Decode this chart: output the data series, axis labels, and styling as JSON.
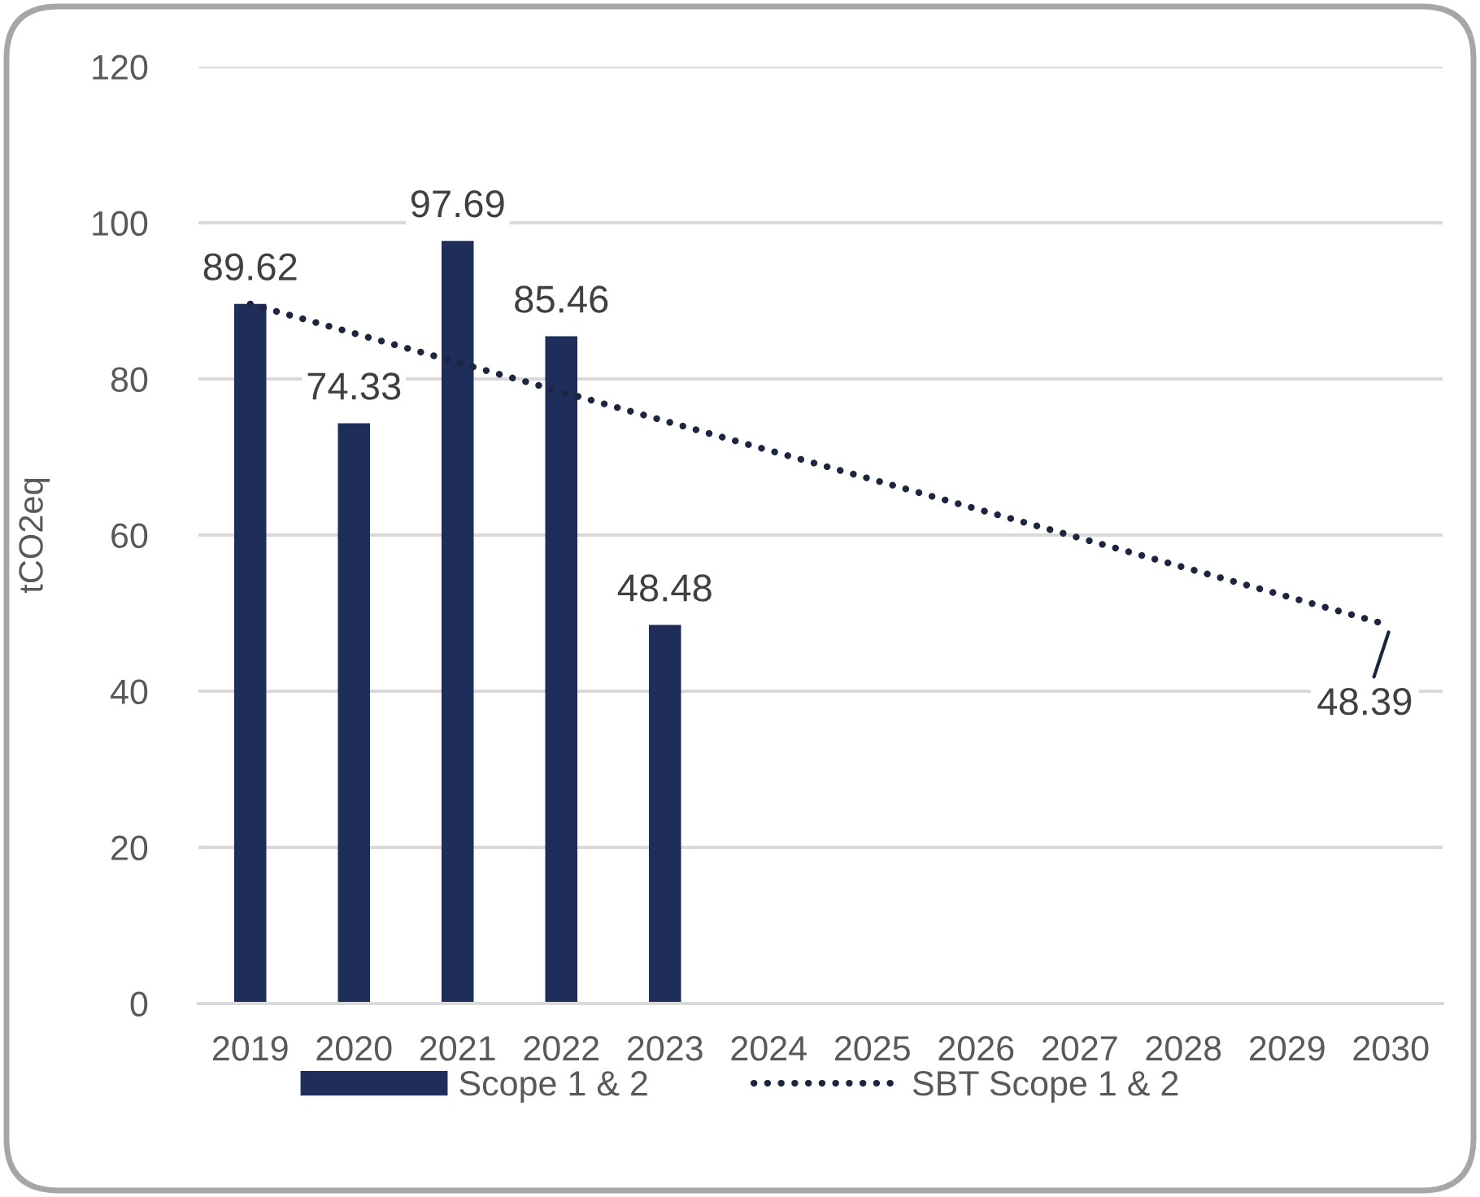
{
  "chart_data": {
    "type": "bar",
    "ylabel": "tCO2eq",
    "xlim": [
      2018.5,
      2030.5
    ],
    "xticks": [
      2019,
      2020,
      2021,
      2022,
      2023,
      2024,
      2025,
      2026,
      2027,
      2028,
      2029,
      2030
    ],
    "ylim": [
      0,
      120
    ],
    "yticks": [
      0,
      20,
      40,
      60,
      80,
      100,
      120
    ],
    "grid": "y",
    "legend": "bottom",
    "series": [
      {
        "name": "Scope 1 & 2",
        "color": "#1f2d5a",
        "x": [
          2019,
          2020,
          2021,
          2022,
          2023
        ],
        "values": [
          89.62,
          74.33,
          97.69,
          85.46,
          48.48
        ],
        "data_labels": true
      },
      {
        "name": "SBT Scope 1 & 2",
        "type": "line",
        "color": "#1c2640",
        "line_style": "dotted",
        "x": [
          2019,
          2030
        ],
        "values": [
          89.6,
          48.39
        ],
        "value_labels": [
          null,
          "48.39"
        ]
      }
    ]
  }
}
